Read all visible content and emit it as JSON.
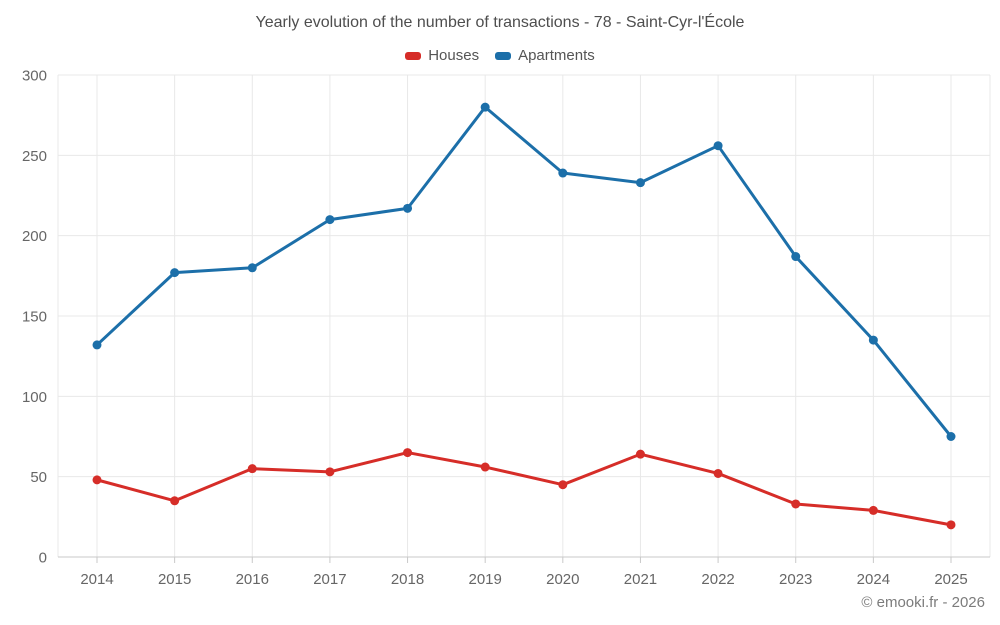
{
  "header": {
    "title": "Yearly evolution of the number of transactions - 78 - Saint-Cyr-l'École"
  },
  "legend": {
    "items": [
      {
        "label": "Houses",
        "color": "#d62d28"
      },
      {
        "label": "Apartments",
        "color": "#1c6fa9"
      }
    ]
  },
  "footer": {
    "copyright": "© emooki.fr - 2026"
  },
  "chart_data": {
    "type": "line",
    "title": "Yearly evolution of the number of transactions - 78 - Saint-Cyr-l'École",
    "categories": [
      "2014",
      "2015",
      "2016",
      "2017",
      "2018",
      "2019",
      "2020",
      "2021",
      "2022",
      "2023",
      "2024",
      "2025"
    ],
    "series": [
      {
        "name": "Houses",
        "color": "#d62d28",
        "values": [
          48,
          35,
          55,
          53,
          65,
          56,
          45,
          64,
          52,
          33,
          29,
          20
        ]
      },
      {
        "name": "Apartments",
        "color": "#1c6fa9",
        "values": [
          132,
          177,
          180,
          210,
          217,
          280,
          239,
          233,
          256,
          187,
          135,
          75
        ]
      }
    ],
    "xlabel": "",
    "ylabel": "",
    "ylim": [
      0,
      300
    ],
    "yticks": [
      0,
      50,
      100,
      150,
      200,
      250,
      300
    ],
    "grid": true,
    "legend_position": "top",
    "marker": "circle"
  },
  "style": {
    "grid_color": "#e8e8e8",
    "axis_color": "#c9c9c9",
    "tick_label_color": "#666666"
  }
}
